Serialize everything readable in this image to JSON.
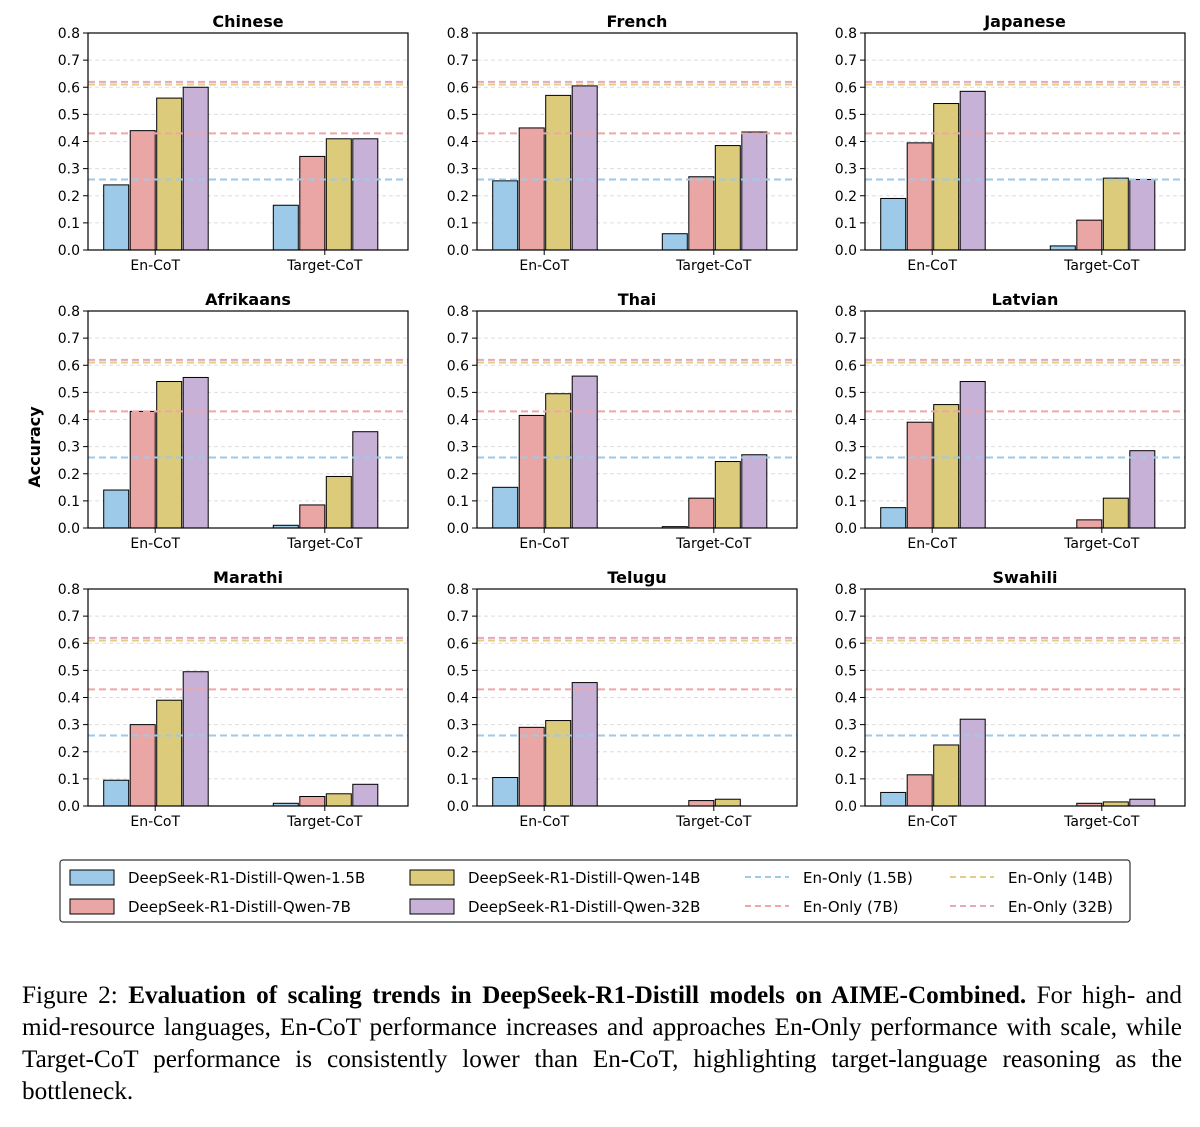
{
  "figure": {
    "ylabel": "Accuracy",
    "ylim": [
      0,
      0.8
    ],
    "yticks": [
      "0.0",
      "0.1",
      "0.2",
      "0.3",
      "0.4",
      "0.5",
      "0.6",
      "0.7",
      "0.8"
    ],
    "colors": {
      "bar_1_5b": "#9ecae9",
      "bar_7b": "#eaa5a5",
      "bar_14b": "#dccb7a",
      "bar_32b": "#c8b1d6",
      "line_1_5b": "#9ecae9",
      "line_7b": "#eea6a6",
      "line_14b": "#e2cf85",
      "line_32b": "#e3a9bd",
      "grid": "#dddddd"
    },
    "legend": {
      "bars": [
        "DeepSeek-R1-Distill-Qwen-1.5B",
        "DeepSeek-R1-Distill-Qwen-7B",
        "DeepSeek-R1-Distill-Qwen-14B",
        "DeepSeek-R1-Distill-Qwen-32B"
      ],
      "lines": [
        "En-Only (1.5B)",
        "En-Only (7B)",
        "En-Only (14B)",
        "En-Only (32B)"
      ]
    }
  },
  "chart_data": [
    {
      "type": "bar",
      "title": "Chinese",
      "categories": [
        "En-CoT",
        "Target-CoT"
      ],
      "ylim": [
        0,
        0.8
      ],
      "ylabel": "",
      "series": [
        {
          "name": "DeepSeek-R1-Distill-Qwen-1.5B",
          "values": [
            0.24,
            0.165
          ]
        },
        {
          "name": "DeepSeek-R1-Distill-Qwen-7B",
          "values": [
            0.44,
            0.345
          ]
        },
        {
          "name": "DeepSeek-R1-Distill-Qwen-14B",
          "values": [
            0.56,
            0.41
          ]
        },
        {
          "name": "DeepSeek-R1-Distill-Qwen-32B",
          "values": [
            0.6,
            0.41
          ]
        }
      ],
      "reference_lines": [
        {
          "name": "En-Only (1.5B)",
          "value": 0.26
        },
        {
          "name": "En-Only (7B)",
          "value": 0.43
        },
        {
          "name": "En-Only (14B)",
          "value": 0.61
        },
        {
          "name": "En-Only (32B)",
          "value": 0.62
        }
      ]
    },
    {
      "type": "bar",
      "title": "French",
      "categories": [
        "En-CoT",
        "Target-CoT"
      ],
      "ylim": [
        0,
        0.8
      ],
      "ylabel": "",
      "series": [
        {
          "name": "DeepSeek-R1-Distill-Qwen-1.5B",
          "values": [
            0.255,
            0.06
          ]
        },
        {
          "name": "DeepSeek-R1-Distill-Qwen-7B",
          "values": [
            0.45,
            0.27
          ]
        },
        {
          "name": "DeepSeek-R1-Distill-Qwen-14B",
          "values": [
            0.57,
            0.385
          ]
        },
        {
          "name": "DeepSeek-R1-Distill-Qwen-32B",
          "values": [
            0.605,
            0.435
          ]
        }
      ],
      "reference_lines": [
        {
          "name": "En-Only (1.5B)",
          "value": 0.26
        },
        {
          "name": "En-Only (7B)",
          "value": 0.43
        },
        {
          "name": "En-Only (14B)",
          "value": 0.61
        },
        {
          "name": "En-Only (32B)",
          "value": 0.62
        }
      ]
    },
    {
      "type": "bar",
      "title": "Japanese",
      "categories": [
        "En-CoT",
        "Target-CoT"
      ],
      "ylim": [
        0,
        0.8
      ],
      "ylabel": "",
      "series": [
        {
          "name": "DeepSeek-R1-Distill-Qwen-1.5B",
          "values": [
            0.19,
            0.015
          ]
        },
        {
          "name": "DeepSeek-R1-Distill-Qwen-7B",
          "values": [
            0.395,
            0.11
          ]
        },
        {
          "name": "DeepSeek-R1-Distill-Qwen-14B",
          "values": [
            0.54,
            0.265
          ]
        },
        {
          "name": "DeepSeek-R1-Distill-Qwen-32B",
          "values": [
            0.585,
            0.26
          ]
        }
      ],
      "reference_lines": [
        {
          "name": "En-Only (1.5B)",
          "value": 0.26
        },
        {
          "name": "En-Only (7B)",
          "value": 0.43
        },
        {
          "name": "En-Only (14B)",
          "value": 0.61
        },
        {
          "name": "En-Only (32B)",
          "value": 0.62
        }
      ]
    },
    {
      "type": "bar",
      "title": "Afrikaans",
      "categories": [
        "En-CoT",
        "Target-CoT"
      ],
      "ylim": [
        0,
        0.8
      ],
      "ylabel": "",
      "series": [
        {
          "name": "DeepSeek-R1-Distill-Qwen-1.5B",
          "values": [
            0.14,
            0.01
          ]
        },
        {
          "name": "DeepSeek-R1-Distill-Qwen-7B",
          "values": [
            0.43,
            0.085
          ]
        },
        {
          "name": "DeepSeek-R1-Distill-Qwen-14B",
          "values": [
            0.54,
            0.19
          ]
        },
        {
          "name": "DeepSeek-R1-Distill-Qwen-32B",
          "values": [
            0.555,
            0.355
          ]
        }
      ],
      "reference_lines": [
        {
          "name": "En-Only (1.5B)",
          "value": 0.26
        },
        {
          "name": "En-Only (7B)",
          "value": 0.43
        },
        {
          "name": "En-Only (14B)",
          "value": 0.61
        },
        {
          "name": "En-Only (32B)",
          "value": 0.62
        }
      ]
    },
    {
      "type": "bar",
      "title": "Thai",
      "categories": [
        "En-CoT",
        "Target-CoT"
      ],
      "ylim": [
        0,
        0.8
      ],
      "ylabel": "",
      "series": [
        {
          "name": "DeepSeek-R1-Distill-Qwen-1.5B",
          "values": [
            0.15,
            0.005
          ]
        },
        {
          "name": "DeepSeek-R1-Distill-Qwen-7B",
          "values": [
            0.415,
            0.11
          ]
        },
        {
          "name": "DeepSeek-R1-Distill-Qwen-14B",
          "values": [
            0.495,
            0.245
          ]
        },
        {
          "name": "DeepSeek-R1-Distill-Qwen-32B",
          "values": [
            0.56,
            0.27
          ]
        }
      ],
      "reference_lines": [
        {
          "name": "En-Only (1.5B)",
          "value": 0.26
        },
        {
          "name": "En-Only (7B)",
          "value": 0.43
        },
        {
          "name": "En-Only (14B)",
          "value": 0.61
        },
        {
          "name": "En-Only (32B)",
          "value": 0.62
        }
      ]
    },
    {
      "type": "bar",
      "title": "Latvian",
      "categories": [
        "En-CoT",
        "Target-CoT"
      ],
      "ylim": [
        0,
        0.8
      ],
      "ylabel": "",
      "series": [
        {
          "name": "DeepSeek-R1-Distill-Qwen-1.5B",
          "values": [
            0.075,
            0.0
          ]
        },
        {
          "name": "DeepSeek-R1-Distill-Qwen-7B",
          "values": [
            0.39,
            0.03
          ]
        },
        {
          "name": "DeepSeek-R1-Distill-Qwen-14B",
          "values": [
            0.455,
            0.11
          ]
        },
        {
          "name": "DeepSeek-R1-Distill-Qwen-32B",
          "values": [
            0.54,
            0.285
          ]
        }
      ],
      "reference_lines": [
        {
          "name": "En-Only (1.5B)",
          "value": 0.26
        },
        {
          "name": "En-Only (7B)",
          "value": 0.43
        },
        {
          "name": "En-Only (14B)",
          "value": 0.61
        },
        {
          "name": "En-Only (32B)",
          "value": 0.62
        }
      ]
    },
    {
      "type": "bar",
      "title": "Marathi",
      "categories": [
        "En-CoT",
        "Target-CoT"
      ],
      "ylim": [
        0,
        0.8
      ],
      "ylabel": "",
      "series": [
        {
          "name": "DeepSeek-R1-Distill-Qwen-1.5B",
          "values": [
            0.095,
            0.01
          ]
        },
        {
          "name": "DeepSeek-R1-Distill-Qwen-7B",
          "values": [
            0.3,
            0.035
          ]
        },
        {
          "name": "DeepSeek-R1-Distill-Qwen-14B",
          "values": [
            0.39,
            0.045
          ]
        },
        {
          "name": "DeepSeek-R1-Distill-Qwen-32B",
          "values": [
            0.495,
            0.08
          ]
        }
      ],
      "reference_lines": [
        {
          "name": "En-Only (1.5B)",
          "value": 0.26
        },
        {
          "name": "En-Only (7B)",
          "value": 0.43
        },
        {
          "name": "En-Only (14B)",
          "value": 0.61
        },
        {
          "name": "En-Only (32B)",
          "value": 0.62
        }
      ]
    },
    {
      "type": "bar",
      "title": "Telugu",
      "categories": [
        "En-CoT",
        "Target-CoT"
      ],
      "ylim": [
        0,
        0.8
      ],
      "ylabel": "",
      "series": [
        {
          "name": "DeepSeek-R1-Distill-Qwen-1.5B",
          "values": [
            0.105,
            0.0
          ]
        },
        {
          "name": "DeepSeek-R1-Distill-Qwen-7B",
          "values": [
            0.29,
            0.02
          ]
        },
        {
          "name": "DeepSeek-R1-Distill-Qwen-14B",
          "values": [
            0.315,
            0.025
          ]
        },
        {
          "name": "DeepSeek-R1-Distill-Qwen-32B",
          "values": [
            0.455,
            0.0
          ]
        }
      ],
      "reference_lines": [
        {
          "name": "En-Only (1.5B)",
          "value": 0.26
        },
        {
          "name": "En-Only (7B)",
          "value": 0.43
        },
        {
          "name": "En-Only (14B)",
          "value": 0.61
        },
        {
          "name": "En-Only (32B)",
          "value": 0.62
        }
      ]
    },
    {
      "type": "bar",
      "title": "Swahili",
      "categories": [
        "En-CoT",
        "Target-CoT"
      ],
      "ylim": [
        0,
        0.8
      ],
      "ylabel": "",
      "series": [
        {
          "name": "DeepSeek-R1-Distill-Qwen-1.5B",
          "values": [
            0.05,
            0.0
          ]
        },
        {
          "name": "DeepSeek-R1-Distill-Qwen-7B",
          "values": [
            0.115,
            0.01
          ]
        },
        {
          "name": "DeepSeek-R1-Distill-Qwen-14B",
          "values": [
            0.225,
            0.015
          ]
        },
        {
          "name": "DeepSeek-R1-Distill-Qwen-32B",
          "values": [
            0.32,
            0.025
          ]
        }
      ],
      "reference_lines": [
        {
          "name": "En-Only (1.5B)",
          "value": 0.26
        },
        {
          "name": "En-Only (7B)",
          "value": 0.43
        },
        {
          "name": "En-Only (14B)",
          "value": 0.61
        },
        {
          "name": "En-Only (32B)",
          "value": 0.62
        }
      ]
    }
  ],
  "caption": {
    "label": "Figure 2: ",
    "bold": "Evaluation of scaling trends in DeepSeek-R1-Distill models on AIME-Combined.",
    "text": " For high- and mid-resource languages, En-CoT performance increases and approaches En-Only performance with scale, while Target-CoT performance is consistently lower than En-CoT, highlighting target-language reasoning as the bottleneck."
  }
}
